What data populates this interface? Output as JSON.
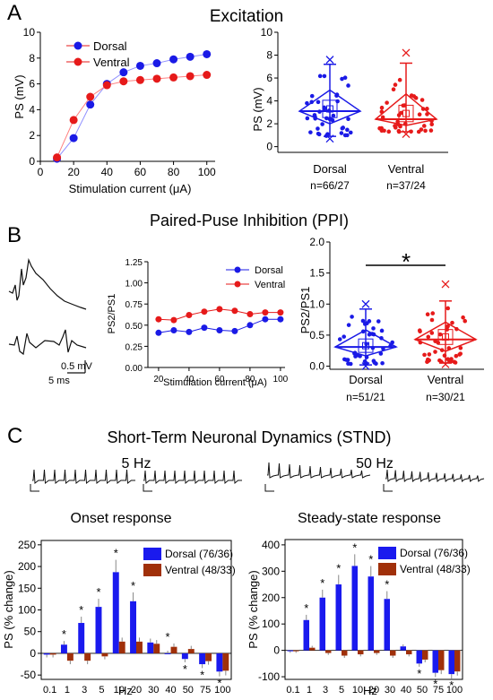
{
  "panels": {
    "A": {
      "letter": "A",
      "title": "Excitation",
      "line": {
        "ylabel": "PS (mV)",
        "xlabel": "Stimulation current (μA)",
        "yticks": [
          "0",
          "2",
          "4",
          "6",
          "8",
          "10"
        ],
        "xticks": [
          "0",
          "20",
          "40",
          "60",
          "80",
          "100"
        ],
        "legend": [
          "Dorsal",
          "Ventral"
        ]
      },
      "violin": {
        "ylabel": "PS (mV)",
        "yticks": [
          "0",
          "2",
          "4",
          "6",
          "8",
          "10"
        ],
        "groups": [
          "Dorsal",
          "Ventral"
        ],
        "n": [
          "n=66/27",
          "n=37/24"
        ]
      }
    },
    "B": {
      "letter": "B",
      "title": "Paired-Puse Inhibition (PPI)",
      "scale": {
        "mv": "0.5 mV",
        "ms": "5 ms"
      },
      "line": {
        "ylabel": "PS2/PS1",
        "xlabel": "Stimulation current (μA)",
        "yticks": [
          "0.00",
          "0.25",
          "0.50",
          "0.75",
          "1.00",
          "1.25"
        ],
        "xticks": [
          "20",
          "40",
          "60",
          "80",
          "100"
        ],
        "legend": [
          "Dorsal",
          "Ventral"
        ]
      },
      "violin": {
        "ylabel": "PS2/PS1",
        "yticks": [
          "0.0",
          "0.5",
          "1.0",
          "1.5",
          "2.0"
        ],
        "groups": [
          "Dorsal",
          "Ventral"
        ],
        "n": [
          "n=51/21",
          "n=30/21"
        ],
        "sig": "*"
      }
    },
    "C": {
      "letter": "C",
      "title": "Short-Term Neuronal Dynamics (STND)",
      "trace_labels": [
        "5 Hz",
        "50 Hz"
      ],
      "onset": {
        "title": "Onset response",
        "ylabel": "PS (% change)",
        "xlabel": "Hz",
        "yticks": [
          "-50",
          "0",
          "50",
          "100",
          "150",
          "200",
          "250"
        ],
        "legend": [
          "Dorsal (76/36)",
          "Ventral (48/33)"
        ]
      },
      "steady": {
        "title": "Steady-state response",
        "ylabel": "PS (% change)",
        "xlabel": "Hz",
        "yticks": [
          "-100",
          "0",
          "100",
          "200",
          "300",
          "400"
        ],
        "legend": [
          "Dorsal (76/36)",
          "Ventral (48/33)"
        ]
      }
    }
  },
  "colors": {
    "dorsal": "#1a1ae6",
    "ventral": "#e61a1a",
    "bar_dorsal": "#1a1aee",
    "bar_ventral": "#a0300a",
    "text": "#000000"
  },
  "chart_data": [
    {
      "type": "line",
      "title": "Excitation",
      "xlabel": "Stimulation current (μA)",
      "ylabel": "PS (mV)",
      "xlim": [
        0,
        105
      ],
      "ylim": [
        0,
        10
      ],
      "x": [
        10,
        20,
        30,
        40,
        50,
        60,
        70,
        80,
        90,
        100
      ],
      "series": [
        {
          "name": "Dorsal",
          "values": [
            0.2,
            1.8,
            4.4,
            6.0,
            6.9,
            7.4,
            7.6,
            7.9,
            8.1,
            8.3
          ]
        },
        {
          "name": "Ventral",
          "values": [
            0.3,
            3.2,
            5.0,
            5.9,
            6.2,
            6.3,
            6.4,
            6.5,
            6.6,
            6.7
          ]
        }
      ],
      "legend": "top-left"
    },
    {
      "type": "scatter",
      "subtype": "violin",
      "ylabel": "PS (mV)",
      "ylim": [
        -0.5,
        10
      ],
      "categories": [
        "Dorsal",
        "Ventral"
      ],
      "n": [
        "n=66/27",
        "n=37/24"
      ],
      "median": [
        3.1,
        2.4
      ],
      "mean": [
        3.3,
        2.9
      ],
      "whisker": [
        [
          0.9,
          7.2
        ],
        [
          1.3,
          7.3
        ]
      ],
      "extremes": [
        [
          0.7,
          7.6
        ],
        [
          1.1,
          8.2
        ]
      ]
    },
    {
      "type": "line",
      "title": "Paired-Puse Inhibition (PPI)",
      "xlabel": "Stimulation current (μA)",
      "ylabel": "PS2/PS1",
      "xlim": [
        13,
        103
      ],
      "ylim": [
        0,
        1.25
      ],
      "x": [
        20,
        30,
        40,
        50,
        60,
        70,
        80,
        90,
        100
      ],
      "series": [
        {
          "name": "Dorsal",
          "values": [
            0.41,
            0.44,
            0.42,
            0.47,
            0.44,
            0.43,
            0.5,
            0.57,
            0.57
          ]
        },
        {
          "name": "Ventral",
          "values": [
            0.57,
            0.56,
            0.62,
            0.66,
            0.69,
            0.67,
            0.63,
            0.65,
            0.65
          ]
        }
      ],
      "legend": "top-right"
    },
    {
      "type": "scatter",
      "subtype": "violin",
      "ylabel": "PS2/PS1",
      "ylim": [
        -0.05,
        2.0
      ],
      "categories": [
        "Dorsal",
        "Ventral"
      ],
      "n": [
        "n=51/21",
        "n=30/21"
      ],
      "median": [
        0.31,
        0.43
      ],
      "mean": [
        0.33,
        0.47
      ],
      "whisker": [
        [
          0.02,
          0.92
        ],
        [
          0.05,
          1.05
        ]
      ],
      "extremes": [
        [
          0.0,
          1.0
        ],
        [
          0.03,
          1.32
        ]
      ],
      "annotation": "*"
    },
    {
      "type": "bar",
      "title": "Onset response",
      "xlabel": "Hz",
      "ylabel": "PS (% change)",
      "ylim": [
        -60,
        260
      ],
      "categories": [
        "0.1",
        "1",
        "3",
        "5",
        "10",
        "20",
        "30",
        "40",
        "50",
        "75",
        "100"
      ],
      "series": [
        {
          "name": "Dorsal (76/36)",
          "values": [
            -3,
            20,
            70,
            107,
            187,
            120,
            25,
            0,
            -13,
            -25,
            -42
          ]
        },
        {
          "name": "Ventral (48/33)",
          "values": [
            -3,
            -17,
            -17,
            -7,
            27,
            27,
            22,
            15,
            10,
            -18,
            -40
          ]
        }
      ],
      "significant": [
        "1",
        "3",
        "5",
        "10",
        "20",
        "40",
        "50",
        "75",
        "100"
      ],
      "legend": "top-right"
    },
    {
      "type": "bar",
      "title": "Steady-state response",
      "xlabel": "Hz",
      "ylabel": "PS (% change)",
      "ylim": [
        -110,
        420
      ],
      "categories": [
        "0.1",
        "1",
        "3",
        "5",
        "10",
        "20",
        "30",
        "40",
        "50",
        "75",
        "100"
      ],
      "series": [
        {
          "name": "Dorsal (76/36)",
          "values": [
            -3,
            115,
            200,
            250,
            320,
            280,
            195,
            15,
            -50,
            -85,
            -90
          ]
        },
        {
          "name": "Ventral (48/33)",
          "values": [
            -3,
            10,
            -10,
            -20,
            -15,
            -10,
            -20,
            -15,
            -35,
            -75,
            -80
          ]
        }
      ],
      "significant": [
        "1",
        "3",
        "5",
        "10",
        "20",
        "30",
        "50",
        "75",
        "100"
      ],
      "legend": "top-right"
    }
  ]
}
